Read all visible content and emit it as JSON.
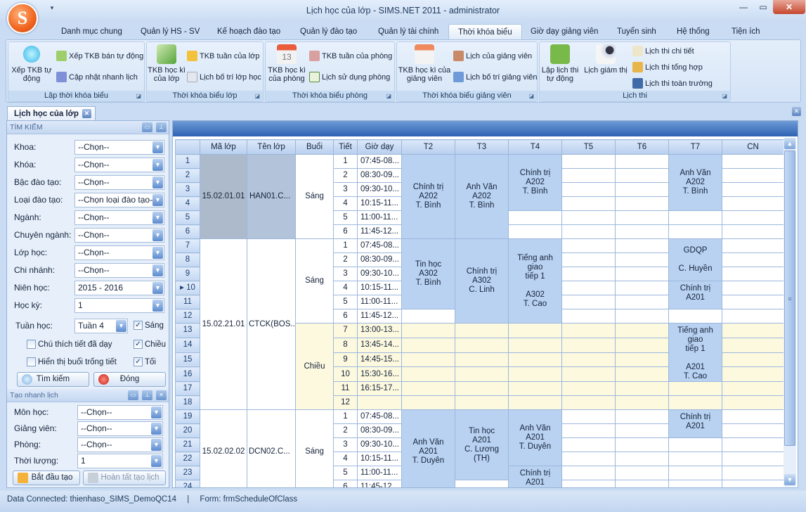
{
  "window": {
    "title": "Lịch học của lớp - SIMS.NET 2011 - administrator",
    "logo_letter": "S",
    "qat": "▾",
    "minimize": "—",
    "maximize": "▭",
    "close": "✕"
  },
  "ribbon_tabs": [
    "Danh mục chung",
    "Quản lý HS - SV",
    "Kế hoạch đào tạo",
    "Quản lý đào tạo",
    "Quản lý tài chính",
    "Thời khóa biểu",
    "Giờ dạy giảng viên",
    "Tuyển sinh",
    "Hệ thống",
    "Tiện ích"
  ],
  "active_tab": "Thời khóa biểu",
  "ribbon": {
    "g1": {
      "label": "Lập thời khóa biểu",
      "big": "Xếp TKB tự động",
      "s1": "Xếp TKB bán tự động",
      "s2": "Cập nhật nhanh lịch"
    },
    "g2": {
      "label": "Thời khóa biểu lớp",
      "big": "TKB học kì của lớp",
      "s1": "TKB tuần của lớp",
      "s2": "Lịch bố trí lớp học"
    },
    "g3": {
      "label": "Thời khóa biểu phòng",
      "big": "TKB học kì của phòng",
      "s1": "TKB tuần của phòng",
      "s2": "Lịch sử dụng phòng"
    },
    "g4": {
      "label": "Thời khóa biểu giảng viên",
      "big": "TKB học kì của giảng viên",
      "s1": "Lịch của giảng viên",
      "s2": "Lịch bố trí giảng viên dạy"
    },
    "g5": {
      "label": "Lịch thi",
      "big1": "Lập lịch thi tự động",
      "big2": "Lịch giám thị",
      "s1": "Lịch thi chi tiết",
      "s2": "Lịch thi tổng hợp",
      "s3": "Lịch thi toàn trường"
    }
  },
  "doc_tab": "Lịch học của lớp",
  "search": {
    "title": "TÌM KIẾM",
    "fields": [
      {
        "label": "Khoa:",
        "value": "--Chọn--"
      },
      {
        "label": "Khóa:",
        "value": "--Chọn--"
      },
      {
        "label": "Bậc đào tạo:",
        "value": "--Chọn--"
      },
      {
        "label": "Loại đào tạo:",
        "value": "--Chọn loại đào tạo--"
      },
      {
        "label": "Ngành:",
        "value": "--Chọn--"
      },
      {
        "label": "Chuyên ngành:",
        "value": "--Chọn--"
      },
      {
        "label": "Lớp học:",
        "value": "--Chọn--"
      },
      {
        "label": "Chi nhánh:",
        "value": "--Chọn--"
      },
      {
        "label": "Niên học:",
        "value": "2015 - 2016"
      },
      {
        "label": "Học kỳ:",
        "value": "1"
      }
    ],
    "week_label": "Tuần học:",
    "week_value": "Tuần 4",
    "sang": {
      "label": "Sáng",
      "checked": true
    },
    "chieu": {
      "label": "Chiều",
      "checked": true
    },
    "toi": {
      "label": "Tối",
      "checked": true
    },
    "chu_thich": {
      "label": "Chú thích tiết đã dạy",
      "checked": false
    },
    "hien_thi": {
      "label": "Hiển thị buổi trống tiết",
      "checked": false
    },
    "search_btn": "Tìm kiếm",
    "close_btn": "Đóng"
  },
  "quick": {
    "title": "Tạo nhanh lịch",
    "fields": [
      {
        "label": "Môn học:",
        "value": "--Chọn--"
      },
      {
        "label": "Giảng viên:",
        "value": "--Chọn--"
      },
      {
        "label": "Phòng:",
        "value": "--Chọn--"
      },
      {
        "label": "Thời lượng:",
        "value": "1"
      }
    ],
    "start_btn": "Bắt đầu tạo",
    "finish_btn": "Hoàn tất tạo lịch"
  },
  "grid": {
    "headers": [
      "",
      "Mã lớp",
      "Tên lớp",
      "Buổi",
      "Tiết",
      "Giờ dạy",
      "T2",
      "T3",
      "T4",
      "T5",
      "T6",
      "T7",
      "CN"
    ],
    "current_row": 10,
    "groups": [
      {
        "ma": "15.02.01.01",
        "ten": "HAN01.C...",
        "selected": true,
        "sessions": [
          {
            "buoi": "Sáng",
            "tone": "morning",
            "periods": [
              [
                "1",
                "07:45-08..."
              ],
              [
                "2",
                "08:30-09..."
              ],
              [
                "3",
                "09:30-10..."
              ],
              [
                "4",
                "10:15-11..."
              ],
              [
                "5",
                "11:00-11..."
              ],
              [
                "6",
                "11:45-12..."
              ]
            ],
            "days": [
              [
                {
                  "n": 6,
                  "t": [
                    "Chính trị",
                    "A202",
                    "T. Bình"
                  ]
                }
              ],
              [
                {
                  "n": 6,
                  "t": [
                    "Anh Văn",
                    "A202",
                    "T. Bình"
                  ]
                }
              ],
              [
                {
                  "n": 4,
                  "t": [
                    "Chính trị",
                    "A202",
                    "T. Bình"
                  ]
                },
                {
                  "n": 2
                }
              ],
              [
                {
                  "n": 6
                }
              ],
              [
                {
                  "n": 6
                }
              ],
              [
                {
                  "n": 4,
                  "t": [
                    "Anh Văn",
                    "A202",
                    "T. Bình"
                  ]
                },
                {
                  "n": 2
                }
              ],
              [
                {
                  "n": 6
                }
              ]
            ]
          }
        ]
      },
      {
        "ma": "15.02.21.01",
        "ten": "CTCK(BOS...",
        "selected": false,
        "sessions": [
          {
            "buoi": "Sáng",
            "tone": "morning",
            "periods": [
              [
                "1",
                "07:45-08..."
              ],
              [
                "2",
                "08:30-09..."
              ],
              [
                "3",
                "09:30-10..."
              ],
              [
                "4",
                "10:15-11..."
              ],
              [
                "5",
                "11:00-11..."
              ],
              [
                "6",
                "11:45-12..."
              ]
            ],
            "days": [
              [
                {
                  "n": 5,
                  "t": [
                    "Tin học",
                    "A302",
                    "T. Bình"
                  ]
                },
                {
                  "n": 1
                }
              ],
              [
                {
                  "n": 6,
                  "t": [
                    "Chính trị",
                    "A302",
                    "C. Linh"
                  ]
                }
              ],
              [
                {
                  "n": 6,
                  "t": [
                    "Tiếng anh giao",
                    "tiếp 1",
                    "",
                    "A302",
                    "T. Cao"
                  ]
                }
              ],
              [
                {
                  "n": 6
                }
              ],
              [
                {
                  "n": 6
                }
              ],
              [
                {
                  "n": 3,
                  "t": [
                    "GDQP",
                    "",
                    "C. Huyền"
                  ]
                },
                {
                  "n": 2,
                  "t": [
                    "Chính trị",
                    "A201"
                  ],
                  "top": true
                },
                {
                  "n": 1
                }
              ],
              [
                {
                  "n": 6
                }
              ]
            ]
          },
          {
            "buoi": "Chiều",
            "tone": "afternoon",
            "periods": [
              [
                "7",
                "13:00-13..."
              ],
              [
                "8",
                "13:45-14..."
              ],
              [
                "9",
                "14:45-15..."
              ],
              [
                "10",
                "15:30-16..."
              ],
              [
                "11",
                "16:15-17..."
              ],
              [
                "12",
                ""
              ]
            ],
            "days": [
              [
                {
                  "n": 6
                }
              ],
              [
                {
                  "n": 6
                }
              ],
              [
                {
                  "n": 6
                }
              ],
              [
                {
                  "n": 6
                }
              ],
              [
                {
                  "n": 6
                }
              ],
              [
                {
                  "n": 4,
                  "t": [
                    "Tiếng anh giao",
                    "tiếp 1",
                    "",
                    "A201",
                    "T. Cao"
                  ],
                  "top": true
                },
                {
                  "n": 2
                }
              ],
              [
                {
                  "n": 6
                }
              ]
            ]
          }
        ]
      },
      {
        "ma": "15.02.02.02",
        "ten": "DCN02.C...",
        "selected": false,
        "sessions": [
          {
            "buoi": "Sáng",
            "tone": "morning",
            "periods": [
              [
                "1",
                "07:45-08..."
              ],
              [
                "2",
                "08:30-09..."
              ],
              [
                "3",
                "09:30-10..."
              ],
              [
                "4",
                "10:15-11..."
              ],
              [
                "5",
                "11:00-11..."
              ],
              [
                "6",
                "11:45-12..."
              ]
            ],
            "days": [
              [
                {
                  "n": 6,
                  "t": [
                    "Anh Văn",
                    "A201",
                    "T. Duyên"
                  ]
                }
              ],
              [
                {
                  "n": 5,
                  "t": [
                    "Tin học",
                    "A201",
                    "C. Lương (TH)"
                  ]
                },
                {
                  "n": 1
                }
              ],
              [
                {
                  "n": 4,
                  "t": [
                    "Anh Văn",
                    "A201",
                    "T. Duyên"
                  ]
                },
                {
                  "n": 2,
                  "t": [
                    "Chính trị",
                    "A201"
                  ],
                  "top": true
                }
              ],
              [
                {
                  "n": 6
                }
              ],
              [
                {
                  "n": 6
                }
              ],
              [
                {
                  "n": 2,
                  "t": [
                    "Chính trị",
                    "A201"
                  ],
                  "top": true
                },
                {
                  "n": 4
                }
              ],
              [
                {
                  "n": 6
                }
              ]
            ]
          }
        ]
      }
    ]
  },
  "status": {
    "connection": "Data Connected: thienhaso_SIMS_DemoQC14",
    "separator": "|",
    "form": "Form: frmScheduleOfClass"
  },
  "colors": {
    "accent": "#2e62b3",
    "lesson_cell": "#b9d2f1",
    "afternoon": "#fdf9df",
    "selected_class": "#adbacb"
  }
}
